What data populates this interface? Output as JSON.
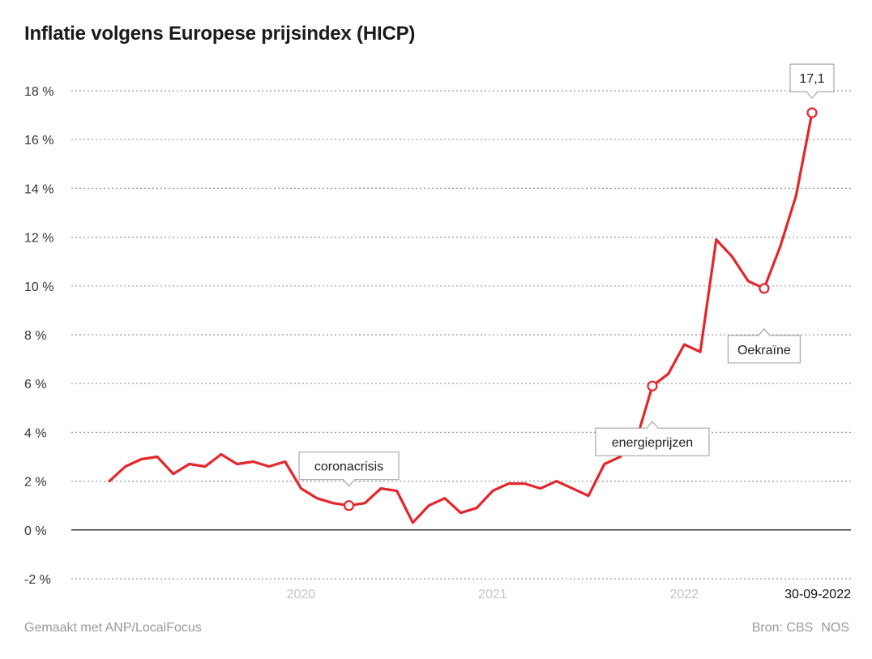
{
  "title": "Inflatie volgens Europese prijsindex (HICP)",
  "footer": {
    "made_with": "Gemaakt met ANP/LocalFocus",
    "source_label": "Bron: CBS",
    "publisher": "NOS"
  },
  "chart_data": {
    "type": "line",
    "title": "Inflatie volgens Europese prijsindex (HICP)",
    "xlabel": "",
    "ylabel": "",
    "ylim": [
      -2,
      18
    ],
    "yticks": [
      {
        "value": 18,
        "label": "18 %"
      },
      {
        "value": 16,
        "label": "16 %"
      },
      {
        "value": 14,
        "label": "14 %"
      },
      {
        "value": 12,
        "label": "12 %"
      },
      {
        "value": 10,
        "label": "10 %"
      },
      {
        "value": 8,
        "label": "8 %"
      },
      {
        "value": 6,
        "label": "6 %"
      },
      {
        "value": 4,
        "label": "4 %"
      },
      {
        "value": 2,
        "label": "2 %"
      },
      {
        "value": 0,
        "label": "0 %"
      },
      {
        "value": -2,
        "label": "-2 %"
      }
    ],
    "xticks": [
      {
        "value": 12,
        "label": "2020"
      },
      {
        "value": 24,
        "label": "2021"
      },
      {
        "value": 36,
        "label": "2022"
      }
    ],
    "end_label": "30-09-2022",
    "line_color": "#e3262b",
    "series": [
      {
        "name": "HICP inflatie",
        "x": [
          0,
          1,
          2,
          3,
          4,
          5,
          6,
          7,
          8,
          9,
          10,
          11,
          12,
          13,
          14,
          15,
          16,
          17,
          18,
          19,
          20,
          21,
          22,
          23,
          24,
          25,
          26,
          27,
          28,
          29,
          30,
          31,
          32,
          33,
          34,
          35,
          36,
          37,
          38,
          39,
          40,
          41,
          42,
          43,
          44
        ],
        "values": [
          2.0,
          2.6,
          2.9,
          3.0,
          2.3,
          2.7,
          2.6,
          3.1,
          2.7,
          2.8,
          2.6,
          2.8,
          1.7,
          1.3,
          1.1,
          1.0,
          1.1,
          1.7,
          1.6,
          0.3,
          1.0,
          1.3,
          0.7,
          0.9,
          1.6,
          1.9,
          1.9,
          1.7,
          2.0,
          1.7,
          1.4,
          2.7,
          3.0,
          3.7,
          5.9,
          6.4,
          7.6,
          7.3,
          11.9,
          11.2,
          10.2,
          9.9,
          11.6,
          13.7,
          17.1
        ]
      }
    ],
    "annotations": [
      {
        "label": "coronacrisis",
        "x": 15,
        "value": 1.0,
        "position": "above"
      },
      {
        "label": "energieprijzen",
        "x": 34,
        "value": 5.9,
        "position": "below"
      },
      {
        "label": "Oekraïne",
        "x": 41,
        "value": 9.9,
        "position": "below"
      },
      {
        "label": "17,1",
        "x": 44,
        "value": 17.1,
        "position": "above"
      }
    ]
  }
}
